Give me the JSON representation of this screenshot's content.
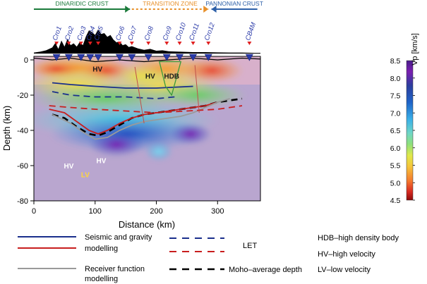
{
  "chart_data": {
    "type": "heatmap",
    "title": "",
    "xlabel": "Distance (km)",
    "ylabel": "Depth (km)",
    "xlim": [
      0,
      370
    ],
    "ylim": [
      -80,
      2
    ],
    "xticks": [
      "0",
      "100",
      "200",
      "300"
    ],
    "xtick_values": [
      0,
      100,
      200,
      300
    ],
    "yticks": [
      "0",
      "-20",
      "-40",
      "-60",
      "-80"
    ],
    "ytick_values": [
      0,
      -20,
      -40,
      -60,
      -80
    ],
    "colorbar": {
      "label": "Vp [km/s]",
      "min": 4.5,
      "max": 8.5,
      "ticks": [
        "8.5",
        "8.0",
        "7.5",
        "7.0",
        "6.5",
        "6.0",
        "5.5",
        "5.0",
        "4.5"
      ],
      "tick_values": [
        8.5,
        8.0,
        7.5,
        7.0,
        6.5,
        6.0,
        5.5,
        5.0,
        4.5
      ],
      "colors": [
        "#4a1c8c",
        "#6a0dad",
        "#9b3fb5",
        "#2c3e9e",
        "#1f64c8",
        "#3a9ee8",
        "#6fd6d6",
        "#7fe07a",
        "#d9e84a",
        "#f5d43a",
        "#f59b2e",
        "#e8502a",
        "#c01e1e",
        "#8c0a0a"
      ]
    },
    "zones": [
      {
        "label": "DINARIDIC CRUST",
        "x_from": 0,
        "x_to": 157,
        "color": "#1a7a3a",
        "direction": "right"
      },
      {
        "label": "TRANSITION ZONE",
        "x_from": 160,
        "x_to": 285,
        "color": "#e8902a",
        "direction": "right"
      },
      {
        "label": "PANNONIAN CRUST",
        "x_from": 290,
        "x_to": 365,
        "color": "#2c5fa8",
        "direction": "left"
      }
    ],
    "stations": [
      {
        "name": "Cro1",
        "x": 37
      },
      {
        "name": "Cro2",
        "x": 57
      },
      {
        "name": "Cro3",
        "x": 77
      },
      {
        "name": "Cro4",
        "x": 92
      },
      {
        "name": "Cro5",
        "x": 105
      },
      {
        "name": "Cro6",
        "x": 140
      },
      {
        "name": "Cro7",
        "x": 160
      },
      {
        "name": "Cro8",
        "x": 187
      },
      {
        "name": "Cro9",
        "x": 217
      },
      {
        "name": "Cro10",
        "x": 238
      },
      {
        "name": "Cro11",
        "x": 260
      },
      {
        "name": "Cro12",
        "x": 285
      },
      {
        "name": "CB4M",
        "x": 352
      }
    ],
    "topography": [
      [
        0,
        0.4
      ],
      [
        10,
        0.8
      ],
      [
        20,
        1.4
      ],
      [
        30,
        2.6
      ],
      [
        35,
        4.6
      ],
      [
        40,
        2.0
      ],
      [
        45,
        5.6
      ],
      [
        50,
        3.0
      ],
      [
        55,
        6.4
      ],
      [
        60,
        3.6
      ],
      [
        65,
        4.4
      ],
      [
        70,
        3.0
      ],
      [
        75,
        5.0
      ],
      [
        80,
        3.6
      ],
      [
        85,
        7.4
      ],
      [
        90,
        10.0
      ],
      [
        95,
        9.2
      ],
      [
        100,
        8.0
      ],
      [
        105,
        10.4
      ],
      [
        110,
        8.4
      ],
      [
        115,
        8.8
      ],
      [
        120,
        7.2
      ],
      [
        125,
        8.0
      ],
      [
        130,
        6.0
      ],
      [
        135,
        4.8
      ],
      [
        140,
        5.2
      ],
      [
        145,
        3.6
      ],
      [
        150,
        4.0
      ],
      [
        155,
        2.8
      ],
      [
        160,
        3.2
      ],
      [
        170,
        2.2
      ],
      [
        180,
        1.6
      ],
      [
        190,
        2.0
      ],
      [
        200,
        1.2
      ],
      [
        210,
        1.4
      ],
      [
        220,
        1.0
      ],
      [
        240,
        0.8
      ],
      [
        260,
        0.6
      ],
      [
        280,
        0.6
      ],
      [
        300,
        0.5
      ],
      [
        320,
        0.4
      ],
      [
        340,
        0.4
      ],
      [
        360,
        0.3
      ],
      [
        370,
        0.3
      ]
    ],
    "series": [
      {
        "name": "Moho–average depth",
        "style": "dashed",
        "color": "#000000",
        "x": [
          30,
          50,
          70,
          90,
          105,
          120,
          140,
          160,
          180,
          200,
          220,
          240,
          260,
          280,
          300,
          320,
          340
        ],
        "y": [
          -31,
          -33,
          -38,
          -42,
          -43,
          -41,
          -37,
          -33,
          -31,
          -30,
          -29,
          -28,
          -27,
          -26,
          -24,
          -23,
          -22
        ]
      },
      {
        "name": "Seismic and gravity modelling",
        "style": "solid",
        "color": "#1a2f8c",
        "x": [
          30,
          60,
          100,
          150,
          200,
          260
        ],
        "y": [
          -13,
          -14,
          -15,
          -16,
          -16,
          -15
        ]
      },
      {
        "name": "Seismic and gravity modelling",
        "style": "solid",
        "color": "#c81e1e",
        "x": [
          25,
          50,
          70,
          90,
          105,
          120,
          140,
          160,
          180,
          200,
          220,
          240,
          260,
          280,
          300
        ],
        "y": [
          -28,
          -30,
          -35,
          -40,
          -42,
          -40,
          -36,
          -33,
          -31,
          -30,
          -29,
          -28,
          -27,
          -26,
          -24
        ]
      },
      {
        "name": "Receiver function modelling",
        "style": "solid",
        "color": "#9a9a9a",
        "x": [
          30,
          60,
          80,
          100,
          120,
          140,
          160,
          180,
          200,
          220,
          240,
          260,
          280,
          300,
          320
        ],
        "y": [
          -31,
          -36,
          -41,
          -45,
          -44,
          -40,
          -37,
          -35,
          -34,
          -33,
          -32,
          -30,
          -27,
          -24,
          -22
        ]
      },
      {
        "name": "LET",
        "style": "dashed",
        "color": "#1a2f8c",
        "x": [
          30,
          60,
          100,
          150,
          200,
          230
        ],
        "y": [
          -18,
          -20,
          -21,
          -21,
          -22,
          -21
        ]
      },
      {
        "name": "LET",
        "style": "dashed",
        "color": "#c81e1e",
        "x": [
          25,
          60,
          100,
          150,
          200,
          250,
          300,
          340
        ],
        "y": [
          -26,
          -27,
          -28,
          -29,
          -30,
          -29,
          -28,
          -26
        ]
      }
    ],
    "annotations": [
      {
        "text": "HV",
        "x": 104,
        "y": -5,
        "color": "#1a1a1a"
      },
      {
        "text": "HV",
        "x": 190,
        "y": -9,
        "color": "#1a1a1a"
      },
      {
        "text": "HDB",
        "x": 225,
        "y": -9,
        "color": "#1a1a1a"
      },
      {
        "text": "HV",
        "x": 57,
        "y": -60,
        "color": "#ffffff"
      },
      {
        "text": "LV",
        "x": 84,
        "y": -65,
        "color": "#ffd83a"
      },
      {
        "text": "HV",
        "x": 110,
        "y": -57,
        "color": "#ffffff"
      }
    ]
  },
  "legend": {
    "seismic_gravity": [
      "Seismic and gravity",
      "modelling"
    ],
    "receiver_function": [
      "Receiver function",
      "modelling"
    ],
    "let": "LET",
    "moho": "Moho–average depth",
    "hdb": "HDB–high density body",
    "hv": "HV–high velocity",
    "lv": "LV–low velocity"
  }
}
